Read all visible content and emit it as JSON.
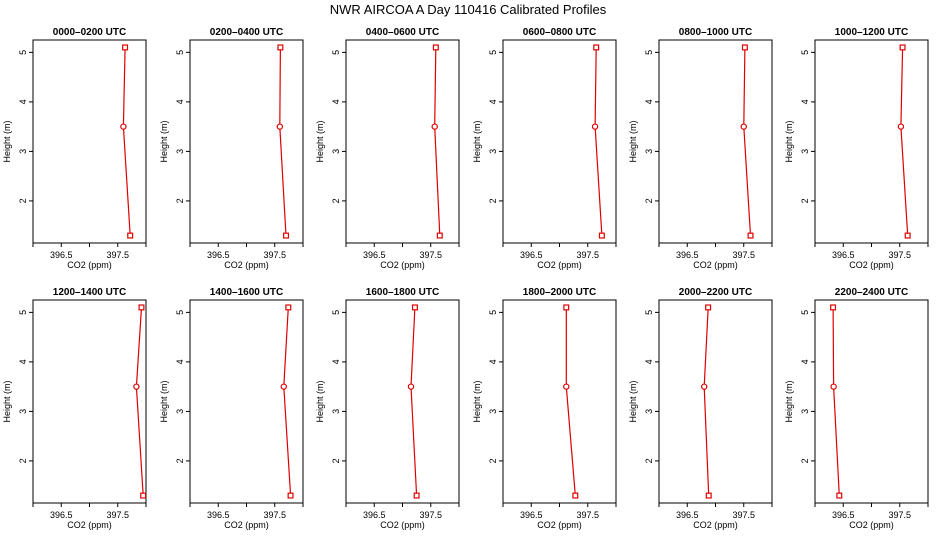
{
  "figure": {
    "title": "NWR AIRCOA A  Day 110416  Calibrated Profiles"
  },
  "chart_data": [
    {
      "type": "line",
      "title": "0000–0200 UTC",
      "xlabel": "CO2 (ppm)",
      "ylabel": "Height (m)",
      "xlim": [
        396.0,
        398.0
      ],
      "ylim": [
        1.15,
        5.25
      ],
      "xticks": [
        "396.5",
        "397.5"
      ],
      "yticks": [
        "2",
        "3",
        "4",
        "5"
      ],
      "x": [
        397.72,
        397.6,
        397.63
      ],
      "y": [
        1.3,
        3.5,
        5.1
      ]
    },
    {
      "type": "line",
      "title": "0200–0400 UTC",
      "xlabel": "CO2 (ppm)",
      "ylabel": "Height (m)",
      "xlim": [
        396.0,
        398.0
      ],
      "ylim": [
        1.15,
        5.25
      ],
      "xticks": [
        "396.5",
        "397.5"
      ],
      "yticks": [
        "2",
        "3",
        "4",
        "5"
      ],
      "x": [
        397.7,
        397.59,
        397.6
      ],
      "y": [
        1.3,
        3.5,
        5.1
      ]
    },
    {
      "type": "line",
      "title": "0400–0600 UTC",
      "xlabel": "CO2 (ppm)",
      "ylabel": "Height (m)",
      "xlim": [
        396.0,
        398.0
      ],
      "ylim": [
        1.15,
        5.25
      ],
      "xticks": [
        "396.5",
        "397.5"
      ],
      "yticks": [
        "2",
        "3",
        "4",
        "5"
      ],
      "x": [
        397.66,
        397.57,
        397.59
      ],
      "y": [
        1.3,
        3.5,
        5.1
      ]
    },
    {
      "type": "line",
      "title": "0600–0800 UTC",
      "xlabel": "CO2 (ppm)",
      "ylabel": "Height (m)",
      "xlim": [
        396.0,
        398.0
      ],
      "ylim": [
        1.15,
        5.25
      ],
      "xticks": [
        "396.5",
        "397.5"
      ],
      "yticks": [
        "2",
        "3",
        "4",
        "5"
      ],
      "x": [
        397.75,
        397.63,
        397.65
      ],
      "y": [
        1.3,
        3.5,
        5.1
      ]
    },
    {
      "type": "line",
      "title": "0800–1000 UTC",
      "xlabel": "CO2 (ppm)",
      "ylabel": "Height (m)",
      "xlim": [
        396.0,
        398.0
      ],
      "ylim": [
        1.15,
        5.25
      ],
      "xticks": [
        "396.5",
        "397.5"
      ],
      "yticks": [
        "2",
        "3",
        "4",
        "5"
      ],
      "x": [
        397.62,
        397.5,
        397.52
      ],
      "y": [
        1.3,
        3.5,
        5.1
      ]
    },
    {
      "type": "line",
      "title": "1000–1200 UTC",
      "xlabel": "CO2 (ppm)",
      "ylabel": "Height (m)",
      "xlim": [
        396.0,
        398.0
      ],
      "ylim": [
        1.15,
        5.25
      ],
      "xticks": [
        "396.5",
        "397.5"
      ],
      "yticks": [
        "2",
        "3",
        "4",
        "5"
      ],
      "x": [
        397.64,
        397.52,
        397.55
      ],
      "y": [
        1.3,
        3.5,
        5.1
      ]
    },
    {
      "type": "line",
      "title": "1200–1400 UTC",
      "xlabel": "CO2 (ppm)",
      "ylabel": "Height (m)",
      "xlim": [
        396.0,
        398.0
      ],
      "ylim": [
        1.15,
        5.25
      ],
      "xticks": [
        "396.5",
        "397.5"
      ],
      "yticks": [
        "2",
        "3",
        "4",
        "5"
      ],
      "x": [
        397.95,
        397.83,
        397.92
      ],
      "y": [
        1.3,
        3.5,
        5.1
      ]
    },
    {
      "type": "line",
      "title": "1400–1600 UTC",
      "xlabel": "CO2 (ppm)",
      "ylabel": "Height (m)",
      "xlim": [
        396.0,
        398.0
      ],
      "ylim": [
        1.15,
        5.25
      ],
      "xticks": [
        "396.5",
        "397.5"
      ],
      "yticks": [
        "2",
        "3",
        "4",
        "5"
      ],
      "x": [
        397.78,
        397.66,
        397.74
      ],
      "y": [
        1.3,
        3.5,
        5.1
      ]
    },
    {
      "type": "line",
      "title": "1600–1800 UTC",
      "xlabel": "CO2 (ppm)",
      "ylabel": "Height (m)",
      "xlim": [
        396.0,
        398.0
      ],
      "ylim": [
        1.15,
        5.25
      ],
      "xticks": [
        "396.5",
        "397.5"
      ],
      "yticks": [
        "2",
        "3",
        "4",
        "5"
      ],
      "x": [
        397.25,
        397.15,
        397.22
      ],
      "y": [
        1.3,
        3.5,
        5.1
      ]
    },
    {
      "type": "line",
      "title": "1800–2000 UTC",
      "xlabel": "CO2 (ppm)",
      "ylabel": "Height (m)",
      "xlim": [
        396.0,
        398.0
      ],
      "ylim": [
        1.15,
        5.25
      ],
      "xticks": [
        "396.5",
        "397.5"
      ],
      "yticks": [
        "2",
        "3",
        "4",
        "5"
      ],
      "x": [
        397.28,
        397.12,
        397.12
      ],
      "y": [
        1.3,
        3.5,
        5.1
      ]
    },
    {
      "type": "line",
      "title": "2000–2200 UTC",
      "xlabel": "CO2 (ppm)",
      "ylabel": "Height (m)",
      "xlim": [
        396.0,
        398.0
      ],
      "ylim": [
        1.15,
        5.25
      ],
      "xticks": [
        "396.5",
        "397.5"
      ],
      "yticks": [
        "2",
        "3",
        "4",
        "5"
      ],
      "x": [
        396.88,
        396.8,
        396.87
      ],
      "y": [
        1.3,
        3.5,
        5.1
      ]
    },
    {
      "type": "line",
      "title": "2200–2400 UTC",
      "xlabel": "CO2 (ppm)",
      "ylabel": "Height (m)",
      "xlim": [
        396.0,
        398.0
      ],
      "ylim": [
        1.15,
        5.25
      ],
      "xticks": [
        "396.5",
        "397.5"
      ],
      "yticks": [
        "2",
        "3",
        "4",
        "5"
      ],
      "x": [
        396.43,
        396.33,
        396.32
      ],
      "y": [
        1.3,
        3.5,
        5.1
      ]
    }
  ],
  "colors": {
    "series": "#dd0000",
    "axis": "#000000"
  }
}
